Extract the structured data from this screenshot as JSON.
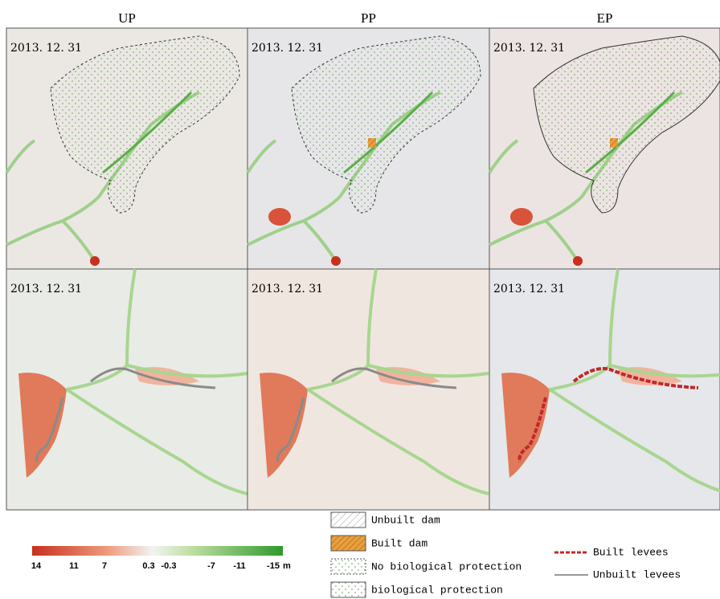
{
  "headers": [
    "UP",
    "PP",
    "EP"
  ],
  "panels": [
    {
      "date": "2013. 12. 31"
    },
    {
      "date": "2013. 12. 31"
    },
    {
      "date": "2013. 12. 31"
    },
    {
      "date": "2013. 12. 31"
    },
    {
      "date": "2013. 12. 31"
    },
    {
      "date": "2013. 12. 31"
    }
  ],
  "colorbar": {
    "labels": [
      "14",
      "11",
      "7",
      "0.3",
      "-0.3",
      "-7",
      "-11",
      "-15"
    ],
    "unit": "m"
  },
  "legend": {
    "areas": [
      "Unbuilt dam",
      "Built dam",
      "No biological protection",
      "biological protection"
    ],
    "lines": [
      "Built levees",
      "Unbuilt levees"
    ]
  }
}
